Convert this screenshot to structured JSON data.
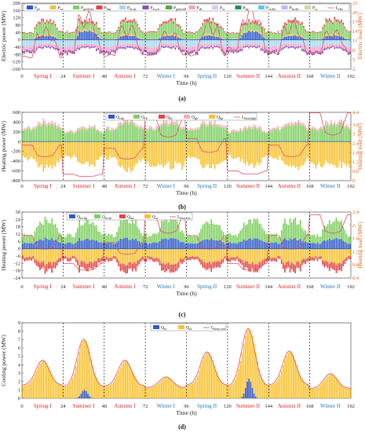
{
  "colors": {
    "p_pv": "#2e59c9",
    "p_wt": "#e8c34a",
    "p_grid_buy": "#7fcf60",
    "p_chp": "#e04545",
    "p_hs_ch": "#a6d8ec",
    "p_es_ch": "#8d4fb3",
    "p_grid_sell": "#4cae3c",
    "p_eb": "#f2a0c8",
    "p_ec": "#d9c7ea",
    "p_hp": "#1f8a70",
    "p_es_dis": "#5bc8e8",
    "p_hs_dis": "#b8b8ff",
    "p_cc": "#c9d9a0",
    "load": "#e05060",
    "q_chp": "#2e59c9",
    "q_eb": "#7fcf60",
    "q_hs": "#e04545",
    "q_gb": "#f2b0b0",
    "q_hp": "#f7c230",
    "q_ac": "#f7c230",
    "q_ec": "#2e59c9",
    "divider": "#222222",
    "right_axis": "#e2601c"
  },
  "chart_data": [
    {
      "panel": "(a)",
      "type": "bar",
      "xlabel": "Time (h)",
      "ylabel": "Electric power (MW)",
      "ylabel_right": "Electric load (MW)",
      "xlim": [
        0,
        192
      ],
      "ylim": [
        -160,
        200
      ],
      "ylim_right": [
        2,
        23
      ],
      "xticks": [
        0,
        24,
        48,
        72,
        96,
        120,
        144,
        168,
        192
      ],
      "yticks": [
        -160,
        -120,
        -80,
        -40,
        0,
        40,
        80,
        120,
        160,
        200
      ],
      "yticks_right": [
        2,
        5,
        8,
        11,
        14,
        17,
        20,
        23
      ],
      "season_labels": [
        "Spring I",
        "Summer I",
        "Autumn I",
        "Winter I",
        "Spring II",
        "Summer II",
        "Autumn II",
        "Winter II"
      ],
      "legend": [
        "P_pv",
        "P_wt",
        "P_grid,buy",
        "P_chp",
        "P_hs,ch",
        "P_es,ch",
        "P_grid,sell",
        "P_eb",
        "P_ec",
        "P_hp",
        "P_es,dis",
        "P_hs,dis",
        "P_cc",
        "L_elec"
      ],
      "season_peak_load": [
        14.5,
        19.5,
        15.5,
        13.5,
        16.5,
        21.0,
        16.5,
        14.0
      ],
      "season_base_load": [
        4.5,
        5.5,
        5.0,
        5.5,
        5.0,
        6.5,
        5.5,
        6.0
      ]
    },
    {
      "panel": "(b)",
      "type": "bar",
      "xlabel": "Time (h)",
      "ylabel": "Heating power (MW)",
      "ylabel_right": "Heating load (MW)",
      "xlim": [
        0,
        192
      ],
      "ylim": [
        -800,
        600
      ],
      "ylim_right": [
        0,
        4.4
      ],
      "xticks": [
        0,
        24,
        48,
        72,
        96,
        120,
        144,
        168,
        192
      ],
      "yticks": [
        -800,
        -600,
        -400,
        -200,
        0,
        200,
        400,
        600
      ],
      "yticks_right": [
        0,
        0.6,
        1.2,
        1.8,
        2.4,
        3.0,
        3.6,
        4.4
      ],
      "season_labels": [
        "Spring I",
        "Summer I",
        "Autumn I",
        "Winter I",
        "Spring II",
        "Summer II",
        "Autumn II",
        "Winter II"
      ],
      "legend": [
        "Q_chp",
        "Q_eb",
        "Q_hs",
        "Q_gb",
        "Q_hp",
        "L_heat,high"
      ],
      "season_heat_load": [
        2.2,
        0.4,
        2.0,
        4.0,
        2.6,
        0.6,
        2.2,
        4.2
      ]
    },
    {
      "panel": "(c)",
      "type": "bar",
      "xlabel": "Time (h)",
      "ylabel": "Heating power (MW)",
      "ylabel_right": "Heating load (MW)",
      "xlim": [
        0,
        192
      ],
      "ylim": [
        -24,
        30
      ],
      "ylim_right": [
        0.4,
        2.4
      ],
      "xticks": [
        0,
        24,
        48,
        72,
        96,
        120,
        144,
        168,
        192
      ],
      "yticks": [
        -24,
        -18,
        -12,
        -6,
        0,
        6,
        12,
        18,
        24,
        30
      ],
      "yticks_right": [
        0.4,
        0.8,
        1.2,
        1.6,
        2.0,
        2.4
      ],
      "season_labels": [
        "Spring I",
        "Summer I",
        "Autumn I",
        "Winter I",
        "Spring II",
        "Summer II",
        "Autumn II",
        "Winter II"
      ],
      "legend": [
        "Q_ex,hp",
        "Q_ex,hr",
        "Q_ms",
        "Q_ac",
        "L_heat,low"
      ],
      "season_heat_load": [
        1.6,
        0.8,
        1.4,
        2.2,
        1.6,
        0.8,
        1.6,
        2.2
      ]
    },
    {
      "panel": "(d)",
      "type": "bar",
      "xlabel": "Time (h)",
      "ylabel": "Cooling power (MW)",
      "xlim": [
        0,
        192
      ],
      "ylim": [
        0,
        9
      ],
      "xticks": [
        0,
        24,
        48,
        72,
        96,
        120,
        144,
        168,
        192
      ],
      "yticks": [
        0,
        1,
        2,
        3,
        4,
        5,
        6,
        7,
        8,
        9
      ],
      "season_labels": [
        "Spring I",
        "Summer I",
        "Autumn I",
        "Winter I",
        "Spring II",
        "Summer II",
        "Autumn II",
        "Winter II"
      ],
      "legend": [
        "Q_ec",
        "Q_ac",
        "L_heat,cool"
      ],
      "season_peak_cool": [
        4.5,
        7.0,
        4.5,
        2.5,
        5.5,
        8.3,
        5.6,
        2.9
      ],
      "season_base_cool": [
        1.5,
        1.3,
        1.4,
        1.2,
        1.5,
        1.4,
        1.5,
        1.1
      ],
      "season_ec_peak": [
        0,
        1.0,
        0,
        0,
        0,
        2.3,
        0,
        0
      ]
    }
  ]
}
